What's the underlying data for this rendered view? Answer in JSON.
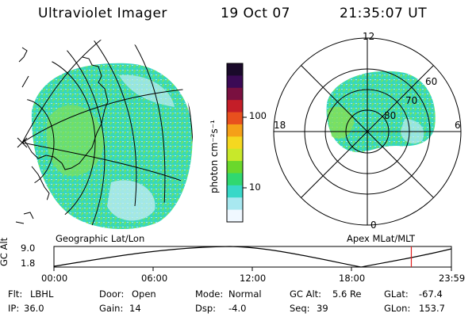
{
  "header": {
    "instrument": "Ultraviolet Imager",
    "date": "19 Oct 07",
    "time": "21:35:07 UT"
  },
  "left_panel": {
    "label": "Geographic Lat/Lon"
  },
  "right_panel": {
    "label": "Apex MLat/MLT",
    "mlt_labels": [
      "12",
      "18",
      "6",
      "0"
    ],
    "lat_labels": [
      "60",
      "70",
      "80"
    ]
  },
  "colorbar": {
    "unit_label": "photon cm⁻²s⁻¹",
    "ticks": [
      "100",
      "10"
    ],
    "colors": [
      "#1a0a2a",
      "#3b0a55",
      "#7a1040",
      "#c41e28",
      "#e8501e",
      "#f5a018",
      "#f5d820",
      "#c8e82a",
      "#6ad82c",
      "#30d870",
      "#38d8c8",
      "#a8e8f0",
      "#f0f8ff"
    ]
  },
  "altitude_plot": {
    "ylabel": "GC Alt",
    "yticks": [
      "9.0",
      "1.8"
    ],
    "xticks": [
      "00:00",
      "06:00",
      "12:00",
      "18:00",
      "23:59"
    ],
    "current_marker_hour": 21.58,
    "marker_color": "#e02020"
  },
  "info": {
    "filter_label": "Flt:",
    "filter_value": "LBHL",
    "ip_label": "IP:",
    "ip_value": "36.0",
    "door_label": "Door:",
    "door_value": "Open",
    "gain_label": "Gain:",
    "gain_value": "14",
    "mode_label": "Mode:",
    "mode_value": "Normal",
    "dsp_label": "Dsp:",
    "dsp_value": "-4.0",
    "gcalt_label": "GC Alt:",
    "gcalt_value": "5.6 Re",
    "seq_label": "Seq:",
    "seq_value": "39",
    "glat_label": "GLat:",
    "glat_value": "-67.4",
    "glon_label": "GLon:",
    "glon_value": "153.7"
  }
}
